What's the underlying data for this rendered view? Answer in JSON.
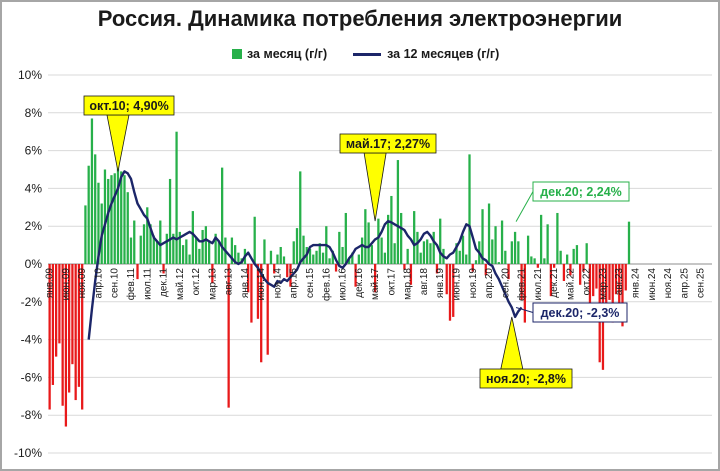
{
  "title": "Россия. Динамика потребления электроэнергии",
  "colors": {
    "monthly_pos": "#27b04a",
    "monthly_neg": "#e8191a",
    "rolling": "#1c2669",
    "grid": "#d9d9d9",
    "callout_yellow": "#ffff00"
  },
  "chart_data": {
    "type": "bar",
    "title": "Россия. Динамика потребления электроэнергии",
    "legend_position": "top",
    "grid": true,
    "ylim": [
      -10,
      10
    ],
    "yticks": [
      "10%",
      "8%",
      "6%",
      "4%",
      "2%",
      "0%",
      "-2%",
      "-4%",
      "-6%",
      "-8%",
      "-10%"
    ],
    "x_tick_labels": [
      "янв.09",
      "июн.09",
      "ноя.09",
      "апр.10",
      "сен.10",
      "фев.11",
      "июл.11",
      "дек.11",
      "май.12",
      "окт.12",
      "мар.13",
      "авг.13",
      "янв.14",
      "июн.14",
      "ноя.14",
      "апр.15",
      "сен.15",
      "фев.16",
      "июл.16",
      "дек.16",
      "май.17",
      "окт.17",
      "мар.18",
      "авг.18",
      "янв.19",
      "июн.19",
      "ноя.19",
      "апр.20",
      "сен.20",
      "фев.21",
      "июл.21",
      "дек.21",
      "май.22",
      "окт.22",
      "мар.23",
      "авг.23",
      "янв.24",
      "июн.24",
      "ноя.24",
      "апр.25",
      "сен.25"
    ],
    "series": [
      {
        "name": "за месяц (г/г)",
        "type": "bar",
        "start": "янв.09",
        "values": [
          -7.7,
          -6.4,
          -4.9,
          -4.2,
          -7.5,
          -8.6,
          -6.8,
          -5.3,
          -7.2,
          -6.5,
          -7.7,
          3.1,
          5.2,
          7.7,
          5.8,
          4.3,
          3.2,
          5.0,
          4.5,
          4.7,
          4.8,
          6.0,
          4.9,
          4.7,
          3.8,
          1.4,
          2.3,
          -0.8,
          1.5,
          2.1,
          3.0,
          2.1,
          1.5,
          1.2,
          2.3,
          -0.5,
          1.6,
          4.5,
          1.6,
          7.0,
          1.7,
          1.0,
          1.3,
          0.5,
          2.8,
          1.4,
          0.8,
          1.8,
          2.0,
          1.2,
          -1.0,
          1.6,
          1.2,
          5.1,
          1.4,
          -7.6,
          1.4,
          1.0,
          0.6,
          0.3,
          0.8,
          -1.5,
          -3.1,
          2.5,
          -2.9,
          -5.2,
          1.3,
          -4.8,
          0.7,
          -0.5,
          0.5,
          0.9,
          0.4,
          -0.7,
          -1.2,
          1.2,
          1.9,
          4.9,
          1.5,
          0.9,
          0.8,
          0.5,
          0.7,
          1.1,
          0.6,
          2.0,
          0.3,
          0.7,
          -0.4,
          1.7,
          0.9,
          2.7,
          0.3,
          0.6,
          -1.2,
          0.5,
          1.4,
          2.9,
          2.2,
          1.0,
          -1.5,
          2.4,
          1.4,
          0.6,
          2.6,
          3.6,
          1.1,
          5.5,
          2.7,
          -0.3,
          0.8,
          -1.1,
          2.8,
          1.7,
          0.6,
          1.2,
          1.3,
          1.1,
          1.7,
          -0.5,
          2.4,
          0.8,
          -1.6,
          -3.0,
          -2.8,
          1.1,
          0.7,
          1.5,
          0.5,
          5.8,
          -0.4,
          0.2,
          1.2,
          2.9,
          -0.6,
          3.2,
          1.3,
          2.0,
          0.1,
          2.3,
          0.7,
          -0.8,
          1.2,
          1.7,
          1.2,
          -1.9,
          -3.1,
          1.5,
          0.4,
          0.3,
          -0.2,
          2.6,
          0.3,
          2.1,
          -1.7,
          -0.2,
          2.7,
          0.7,
          -0.9,
          0.5,
          -0.6,
          0.8,
          1.0,
          -1.1,
          -0.4,
          1.1,
          -2.8,
          -1.7,
          -1.3,
          -5.2,
          -5.6,
          -2.5,
          -1.9,
          -3.1,
          -1.6,
          -2.4,
          -3.3,
          -1.4,
          2.24
        ]
      },
      {
        "name": "за 12 месяцев (г/г)",
        "type": "line",
        "start": "янв.10",
        "values": [
          -4.0,
          -2.4,
          -0.9,
          0.4,
          1.5,
          2.1,
          2.7,
          3.2,
          3.6,
          4.0,
          4.6,
          4.9,
          4.8,
          4.5,
          3.8,
          3.2,
          2.9,
          2.6,
          2.4,
          1.9,
          1.4,
          1.2,
          1.0,
          1.1,
          1.2,
          1.3,
          1.4,
          1.3,
          1.4,
          1.5,
          1.6,
          1.7,
          1.6,
          1.4,
          1.2,
          1.2,
          1.3,
          1.2,
          1.1,
          1.4,
          1.2,
          0.9,
          0.7,
          0.5,
          0.3,
          0.1,
          0.0,
          0.1,
          0.4,
          0.6,
          0.3,
          0.0,
          -0.2,
          -0.5,
          -0.8,
          -1.0,
          -1.1,
          -1.2,
          -0.9,
          -1.0,
          -0.8,
          -0.9,
          -0.7,
          -0.5,
          -0.3,
          0.1,
          0.3,
          0.5,
          0.9,
          1.0,
          1.0,
          1.0,
          1.0,
          1.0,
          0.9,
          0.6,
          0.2,
          -0.1,
          -0.2,
          0.0,
          0.3,
          0.5,
          0.8,
          0.9,
          1.0,
          0.9,
          0.9,
          1.1,
          1.3,
          1.4,
          1.7,
          2.1,
          2.27,
          2.2,
          2.1,
          2.0,
          1.9,
          1.8,
          1.5,
          1.3,
          1.0,
          1.1,
          1.3,
          1.6,
          1.7,
          1.5,
          1.2,
          1.0,
          0.6,
          0.4,
          0.3,
          0.5,
          0.6,
          0.9,
          1.2,
          1.7,
          2.1,
          2.0,
          1.4,
          0.8,
          0.6,
          0.3,
          0.2,
          0.0,
          -0.1,
          -0.5,
          -0.8,
          -1.2,
          -1.6,
          -2.0,
          -2.3,
          -2.8,
          -2.5,
          -2.3
        ]
      }
    ],
    "annotations": [
      {
        "text": "окт.10; 4,90%",
        "style": "yellow-callout"
      },
      {
        "text": "май.17; 2,27%",
        "style": "yellow-callout"
      },
      {
        "text": "ноя.20; -2,8%",
        "style": "yellow-callout"
      },
      {
        "text": "дек.20; 2,24%",
        "style": "green-box"
      },
      {
        "text": "дек.20; -2,3%",
        "style": "navy-box"
      }
    ]
  }
}
